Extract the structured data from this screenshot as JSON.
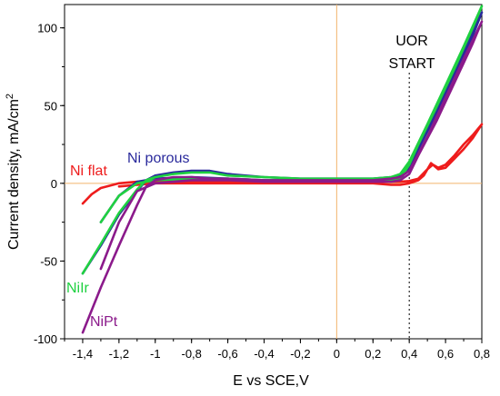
{
  "chart_data": {
    "type": "line",
    "title": "",
    "xlabel": "E vs SCE,V",
    "ylabel_main": "Current density, mA/cm",
    "ylabel_sup": "2",
    "xlim": [
      -1.5,
      0.8
    ],
    "ylim": [
      -100,
      115
    ],
    "x_ticks": [
      -1.4,
      -1.2,
      -1,
      -0.8,
      -0.6,
      -0.4,
      -0.2,
      0,
      0.2,
      0.4,
      0.6,
      0.8
    ],
    "x_tick_labels": [
      "-1,4",
      "-1,2",
      "-1",
      "-0,8",
      "-0,6",
      "-0,4",
      "-0,2",
      "0",
      "0,2",
      "0,4",
      "0,6",
      "0,8"
    ],
    "y_ticks": [
      -100,
      -50,
      0,
      50,
      100
    ],
    "y_tick_labels": [
      "-100",
      "-50",
      "0",
      "50",
      "100"
    ],
    "grid": false,
    "reference_lines": [
      {
        "axis": "y",
        "value": 0,
        "color": "#f2b36b"
      },
      {
        "axis": "x",
        "value": 0,
        "color": "#f2b36b"
      },
      {
        "axis": "x",
        "value": 0.4,
        "color": "#000000",
        "style": "dotted"
      }
    ],
    "annotation": {
      "lines": [
        "UOR",
        "START"
      ],
      "x": 0.4
    },
    "series": [
      {
        "name": "Ni flat",
        "color": "#ee1c1c",
        "points": [
          [
            -1.4,
            -13
          ],
          [
            -1.35,
            -7
          ],
          [
            -1.3,
            -3
          ],
          [
            -1.2,
            0
          ],
          [
            -1.1,
            1
          ],
          [
            -1.0,
            1
          ],
          [
            -0.8,
            1
          ],
          [
            -0.6,
            1
          ],
          [
            -0.4,
            1
          ],
          [
            -0.2,
            1
          ],
          [
            0,
            1
          ],
          [
            0.2,
            1
          ],
          [
            0.3,
            1
          ],
          [
            0.35,
            1
          ],
          [
            0.4,
            1.5
          ],
          [
            0.45,
            3
          ],
          [
            0.5,
            9
          ],
          [
            0.53,
            12
          ],
          [
            0.56,
            10
          ],
          [
            0.6,
            12
          ],
          [
            0.65,
            18
          ],
          [
            0.7,
            25
          ],
          [
            0.75,
            31
          ],
          [
            0.8,
            38
          ],
          [
            0.75,
            29
          ],
          [
            0.7,
            22
          ],
          [
            0.65,
            16
          ],
          [
            0.6,
            10
          ],
          [
            0.56,
            9
          ],
          [
            0.52,
            13
          ],
          [
            0.48,
            5
          ],
          [
            0.45,
            2
          ],
          [
            0.4,
            0
          ],
          [
            0.35,
            -1
          ],
          [
            0.3,
            -1
          ],
          [
            0.2,
            0
          ],
          [
            0,
            0
          ],
          [
            -0.2,
            0
          ],
          [
            -0.4,
            0
          ],
          [
            -0.6,
            0
          ],
          [
            -0.8,
            0
          ],
          [
            -1.0,
            0
          ],
          [
            -1.1,
            -1
          ],
          [
            -1.2,
            -2
          ]
        ]
      },
      {
        "name": "Ni porous",
        "color": "#2a2a9c",
        "points": [
          [
            -1.4,
            -58
          ],
          [
            -1.3,
            -40
          ],
          [
            -1.2,
            -20
          ],
          [
            -1.1,
            -5
          ],
          [
            -1.05,
            2
          ],
          [
            -1.0,
            5
          ],
          [
            -0.9,
            7
          ],
          [
            -0.8,
            8
          ],
          [
            -0.7,
            8
          ],
          [
            -0.6,
            6
          ],
          [
            -0.4,
            4
          ],
          [
            -0.2,
            3
          ],
          [
            0,
            3
          ],
          [
            0.2,
            3
          ],
          [
            0.3,
            4
          ],
          [
            0.35,
            5
          ],
          [
            0.4,
            12
          ],
          [
            0.5,
            35
          ],
          [
            0.6,
            60
          ],
          [
            0.7,
            85
          ],
          [
            0.8,
            110
          ],
          [
            0.75,
            95
          ],
          [
            0.65,
            70
          ],
          [
            0.55,
            45
          ],
          [
            0.45,
            22
          ],
          [
            0.4,
            10
          ],
          [
            0.35,
            3
          ],
          [
            0.3,
            2
          ],
          [
            0.2,
            2
          ],
          [
            0,
            2
          ],
          [
            -0.2,
            2
          ],
          [
            -0.4,
            2
          ],
          [
            -0.6,
            3
          ],
          [
            -0.8,
            4
          ],
          [
            -1.0,
            3
          ],
          [
            -1.1,
            1
          ],
          [
            -1.2,
            -8
          ],
          [
            -1.3,
            -25
          ]
        ]
      },
      {
        "name": "NiIr",
        "color": "#1fd141",
        "points": [
          [
            -1.4,
            -58
          ],
          [
            -1.3,
            -39
          ],
          [
            -1.2,
            -19
          ],
          [
            -1.1,
            -4
          ],
          [
            -1.05,
            2
          ],
          [
            -1.0,
            4
          ],
          [
            -0.9,
            6
          ],
          [
            -0.8,
            7
          ],
          [
            -0.7,
            7
          ],
          [
            -0.6,
            5
          ],
          [
            -0.4,
            4
          ],
          [
            -0.2,
            3
          ],
          [
            0,
            3
          ],
          [
            0.2,
            3
          ],
          [
            0.3,
            4
          ],
          [
            0.35,
            6
          ],
          [
            0.4,
            14
          ],
          [
            0.5,
            38
          ],
          [
            0.6,
            63
          ],
          [
            0.7,
            88
          ],
          [
            0.8,
            114
          ],
          [
            0.75,
            100
          ],
          [
            0.65,
            74
          ],
          [
            0.55,
            49
          ],
          [
            0.45,
            25
          ],
          [
            0.4,
            12
          ],
          [
            0.35,
            3
          ],
          [
            0.3,
            2
          ],
          [
            0.2,
            2
          ],
          [
            0,
            2
          ],
          [
            -0.2,
            2
          ],
          [
            -0.4,
            2
          ],
          [
            -0.6,
            3
          ],
          [
            -0.8,
            3
          ],
          [
            -1.0,
            2
          ],
          [
            -1.1,
            0
          ],
          [
            -1.2,
            -8
          ],
          [
            -1.3,
            -25
          ]
        ]
      },
      {
        "name": "NiPt",
        "color": "#8b1a8b",
        "points": [
          [
            -1.4,
            -96
          ],
          [
            -1.3,
            -67
          ],
          [
            -1.2,
            -40
          ],
          [
            -1.1,
            -14
          ],
          [
            -1.05,
            -2
          ],
          [
            -1.0,
            2
          ],
          [
            -0.9,
            4
          ],
          [
            -0.8,
            4
          ],
          [
            -0.7,
            3
          ],
          [
            -0.6,
            3
          ],
          [
            -0.4,
            2
          ],
          [
            -0.2,
            2
          ],
          [
            0,
            2
          ],
          [
            0.2,
            2
          ],
          [
            0.3,
            3
          ],
          [
            0.35,
            4
          ],
          [
            0.4,
            8
          ],
          [
            0.5,
            30
          ],
          [
            0.6,
            55
          ],
          [
            0.7,
            80
          ],
          [
            0.8,
            104
          ],
          [
            0.75,
            90
          ],
          [
            0.65,
            65
          ],
          [
            0.55,
            40
          ],
          [
            0.45,
            18
          ],
          [
            0.4,
            6
          ],
          [
            0.35,
            2
          ],
          [
            0.3,
            1
          ],
          [
            0.2,
            1
          ],
          [
            0,
            1
          ],
          [
            -0.2,
            1
          ],
          [
            -0.4,
            1
          ],
          [
            -0.6,
            2
          ],
          [
            -0.8,
            2
          ],
          [
            -1.0,
            0
          ],
          [
            -1.1,
            -5
          ],
          [
            -1.2,
            -25
          ],
          [
            -1.3,
            -55
          ]
        ]
      }
    ]
  }
}
